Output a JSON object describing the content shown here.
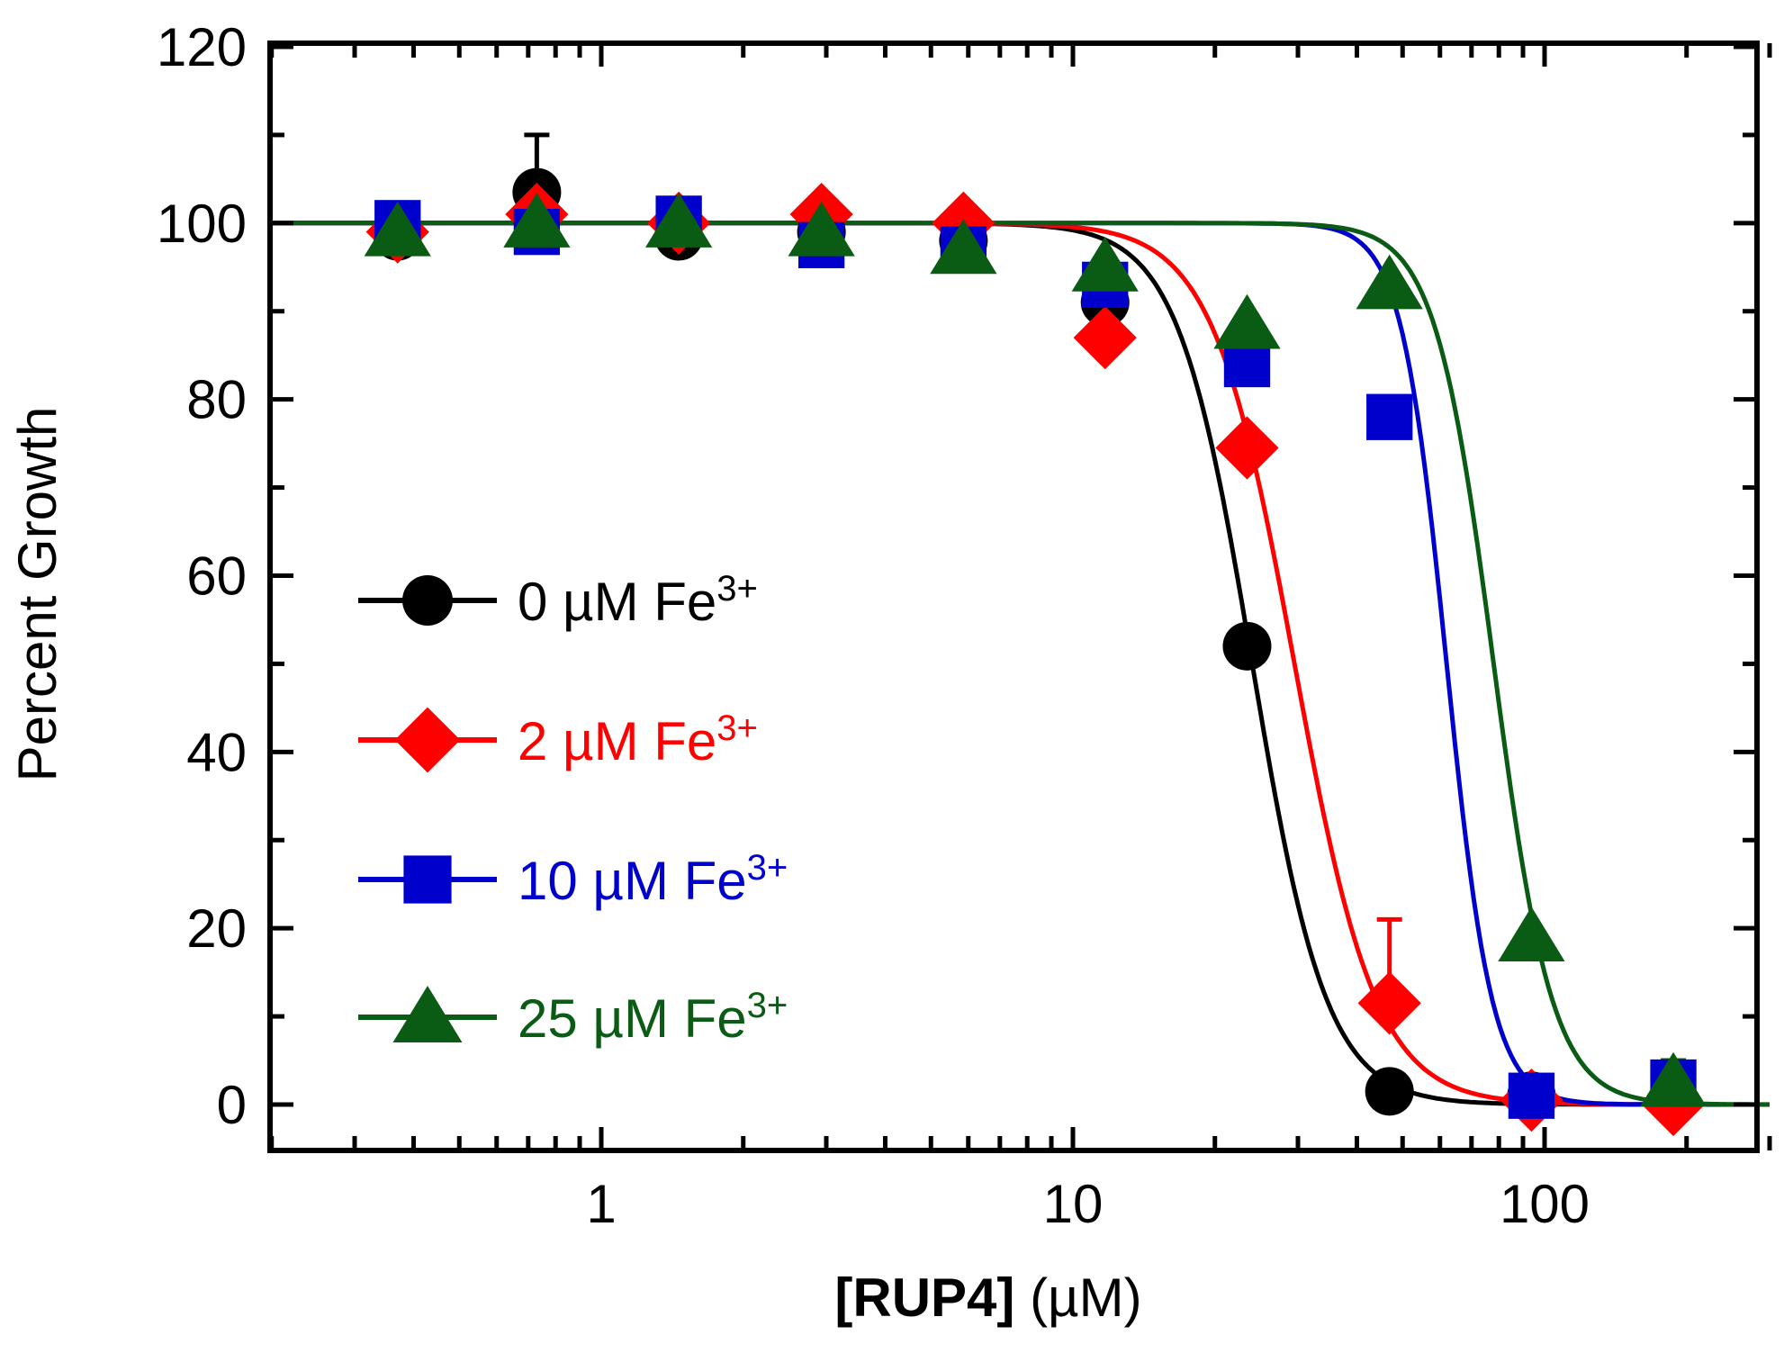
{
  "chart_data": {
    "type": "scatter",
    "title": "",
    "xlabel_bold": "[RUP4]",
    "xlabel_rest": "(µM)",
    "ylabel": "Percent Growth",
    "xscale": "log",
    "xlim": [
      0.2,
      300
    ],
    "ylim": [
      -5,
      120
    ],
    "xticks": [
      1,
      10,
      100
    ],
    "xtick_labels": [
      "1",
      "10",
      "100"
    ],
    "yticks": [
      0,
      20,
      40,
      60,
      80,
      100,
      120
    ],
    "ytick_labels": [
      "0",
      "20",
      "40",
      "60",
      "80",
      "100",
      "120"
    ],
    "legend_position": "center-left",
    "series": [
      {
        "name": "0 µM Fe",
        "sup": "3+",
        "color": "#000000",
        "marker": "circle",
        "x": [
          0.37,
          0.73,
          1.46,
          2.93,
          5.86,
          11.7,
          23.4,
          46.9,
          93.8,
          187.5
        ],
        "y": [
          98.5,
          103.5,
          98.5,
          99,
          98,
          91,
          52,
          1.5,
          1,
          0.5
        ],
        "err": [
          0,
          6.5,
          0,
          0,
          0,
          0,
          0,
          0,
          0,
          0
        ],
        "fit": {
          "ic50": 24,
          "hill": 5.5
        }
      },
      {
        "name": "2 µM Fe",
        "sup": "3+",
        "color": "#ff0000",
        "marker": "diamond",
        "x": [
          0.37,
          0.73,
          1.46,
          2.93,
          5.86,
          11.7,
          23.4,
          46.9,
          93.8,
          187.5
        ],
        "y": [
          99,
          101,
          100,
          101,
          100,
          87,
          74.5,
          11.5,
          0.5,
          0
        ],
        "err": [
          0,
          0,
          0,
          0,
          0,
          0,
          0,
          9.5,
          0,
          0
        ],
        "fit": {
          "ic50": 29.5,
          "hill": 5
        }
      },
      {
        "name": "10 µM Fe",
        "sup": "3+",
        "color": "#0000cc",
        "marker": "square",
        "x": [
          0.37,
          0.73,
          1.46,
          2.93,
          5.86,
          11.7,
          23.4,
          46.9,
          93.8,
          187.5
        ],
        "y": [
          100,
          99,
          100.5,
          97.5,
          97,
          93,
          84,
          78,
          1,
          2.5
        ],
        "err": [
          0,
          0,
          0,
          0,
          0,
          0,
          0,
          0,
          0,
          0
        ],
        "fit": {
          "ic50": 62,
          "hill": 9
        }
      },
      {
        "name": "25 µM Fe",
        "sup": "3+",
        "color": "#0a5c14",
        "marker": "triangle",
        "x": [
          0.37,
          0.73,
          1.46,
          2.93,
          5.86,
          11.7,
          23.4,
          46.9,
          93.8,
          187.5
        ],
        "y": [
          99,
          100,
          100,
          99,
          97,
          95,
          88.5,
          93,
          19,
          2.5
        ],
        "err": [
          0,
          0,
          0,
          0,
          0,
          0,
          0,
          0,
          0,
          2.5
        ],
        "fit": {
          "ic50": 78,
          "hill": 7
        }
      }
    ]
  }
}
